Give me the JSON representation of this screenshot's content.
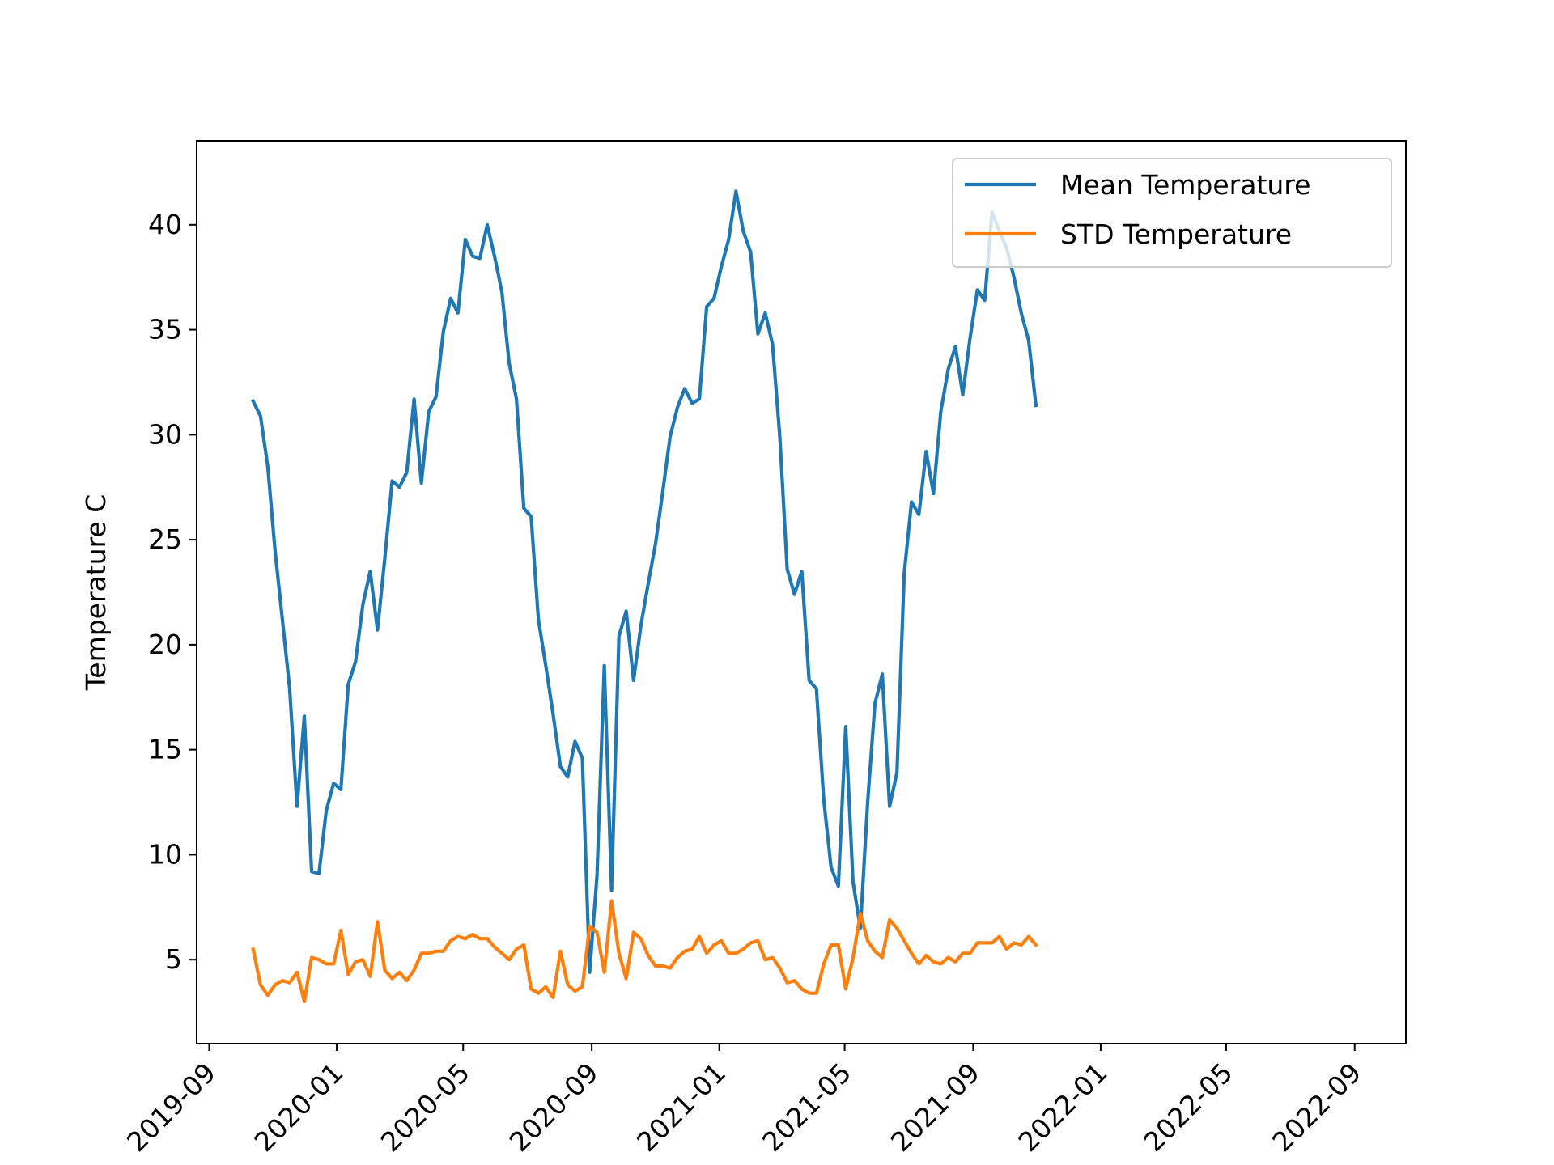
{
  "chart_data": {
    "type": "line",
    "title": "",
    "xlabel": "",
    "ylabel": "Temperature C",
    "x_range": [
      "2019-08-20",
      "2022-10-20"
    ],
    "ylim": [
      1.0,
      44.0
    ],
    "yticks": [
      5,
      10,
      15,
      20,
      25,
      30,
      35,
      40
    ],
    "xticks": [
      "2019-09",
      "2020-01",
      "2020-05",
      "2020-09",
      "2021-01",
      "2021-05",
      "2021-09",
      "2022-01",
      "2022-05",
      "2022-09"
    ],
    "grid": false,
    "legend": "upper right",
    "series": [
      {
        "name": "Mean Temperature",
        "color": "#1f77b4",
        "points": [
          [
            "2019-10-13",
            31.6
          ],
          [
            "2019-10-20",
            30.9
          ],
          [
            "2019-10-27",
            28.5
          ],
          [
            "2019-11-03",
            24.5
          ],
          [
            "2019-11-10",
            21.2
          ],
          [
            "2019-11-17",
            17.9
          ],
          [
            "2019-11-24",
            12.3
          ],
          [
            "2019-12-01",
            16.6
          ],
          [
            "2019-12-08",
            9.2
          ],
          [
            "2019-12-15",
            9.1
          ],
          [
            "2019-12-22",
            12.1
          ],
          [
            "2019-12-29",
            13.4
          ],
          [
            "2020-01-05",
            13.1
          ],
          [
            "2020-01-12",
            18.1
          ],
          [
            "2020-01-19",
            19.2
          ],
          [
            "2020-01-26",
            21.9
          ],
          [
            "2020-02-02",
            23.5
          ],
          [
            "2020-02-09",
            20.7
          ],
          [
            "2020-02-16",
            24.1
          ],
          [
            "2020-02-23",
            27.8
          ],
          [
            "2020-03-01",
            27.5
          ],
          [
            "2020-03-08",
            28.2
          ],
          [
            "2020-03-15",
            31.7
          ],
          [
            "2020-03-22",
            27.7
          ],
          [
            "2020-03-29",
            31.1
          ],
          [
            "2020-04-05",
            31.8
          ],
          [
            "2020-04-12",
            34.9
          ],
          [
            "2020-04-19",
            36.5
          ],
          [
            "2020-04-26",
            35.8
          ],
          [
            "2020-05-03",
            39.3
          ],
          [
            "2020-05-10",
            38.5
          ],
          [
            "2020-05-17",
            38.4
          ],
          [
            "2020-05-24",
            40.0
          ],
          [
            "2020-05-31",
            38.5
          ],
          [
            "2020-06-07",
            36.8
          ],
          [
            "2020-06-14",
            33.4
          ],
          [
            "2020-06-21",
            31.7
          ],
          [
            "2020-06-28",
            26.5
          ],
          [
            "2020-07-05",
            26.1
          ],
          [
            "2020-07-12",
            21.2
          ],
          [
            "2020-07-19",
            19.0
          ],
          [
            "2020-07-26",
            16.7
          ],
          [
            "2020-08-02",
            14.2
          ],
          [
            "2020-08-09",
            13.7
          ],
          [
            "2020-08-16",
            15.4
          ],
          [
            "2020-08-23",
            14.6
          ],
          [
            "2020-08-30",
            4.4
          ],
          [
            "2020-09-06",
            9.0
          ],
          [
            "2020-09-13",
            19.0
          ],
          [
            "2020-09-20",
            8.3
          ],
          [
            "2020-09-27",
            20.4
          ],
          [
            "2020-10-04",
            21.6
          ],
          [
            "2020-10-11",
            18.3
          ],
          [
            "2020-10-18",
            20.9
          ],
          [
            "2020-10-25",
            22.9
          ],
          [
            "2020-11-01",
            24.8
          ],
          [
            "2020-11-08",
            27.3
          ],
          [
            "2020-11-15",
            29.9
          ],
          [
            "2020-11-22",
            31.3
          ],
          [
            "2020-11-29",
            32.2
          ],
          [
            "2020-12-06",
            31.5
          ],
          [
            "2020-12-13",
            31.7
          ],
          [
            "2020-12-20",
            36.1
          ],
          [
            "2020-12-27",
            36.5
          ],
          [
            "2021-01-03",
            38.0
          ],
          [
            "2021-01-10",
            39.3
          ],
          [
            "2021-01-17",
            41.6
          ],
          [
            "2021-01-24",
            39.7
          ],
          [
            "2021-01-31",
            38.7
          ],
          [
            "2021-02-07",
            34.8
          ],
          [
            "2021-02-14",
            35.8
          ],
          [
            "2021-02-21",
            34.3
          ],
          [
            "2021-02-28",
            29.9
          ],
          [
            "2021-03-07",
            23.6
          ],
          [
            "2021-03-14",
            22.4
          ],
          [
            "2021-03-21",
            23.5
          ],
          [
            "2021-03-28",
            18.3
          ],
          [
            "2021-04-04",
            17.9
          ],
          [
            "2021-04-11",
            12.6
          ],
          [
            "2021-04-18",
            9.4
          ],
          [
            "2021-04-25",
            8.5
          ],
          [
            "2021-05-02",
            16.1
          ],
          [
            "2021-05-09",
            8.7
          ],
          [
            "2021-05-16",
            6.5
          ],
          [
            "2021-05-23",
            12.5
          ],
          [
            "2021-05-30",
            17.2
          ],
          [
            "2021-06-06",
            18.6
          ],
          [
            "2021-06-13",
            12.3
          ],
          [
            "2021-06-20",
            13.9
          ],
          [
            "2021-06-27",
            23.4
          ],
          [
            "2021-07-04",
            26.8
          ],
          [
            "2021-07-11",
            26.2
          ],
          [
            "2021-07-18",
            29.2
          ],
          [
            "2021-07-25",
            27.2
          ],
          [
            "2021-08-01",
            31.1
          ],
          [
            "2021-08-08",
            33.1
          ],
          [
            "2021-08-15",
            34.2
          ],
          [
            "2021-08-22",
            31.9
          ],
          [
            "2021-08-29",
            34.6
          ],
          [
            "2021-09-05",
            36.9
          ],
          [
            "2021-09-12",
            36.4
          ],
          [
            "2021-09-19",
            40.6
          ],
          [
            "2021-09-26",
            39.7
          ],
          [
            "2021-10-03",
            38.9
          ],
          [
            "2021-10-10",
            37.5
          ],
          [
            "2021-10-17",
            35.8
          ],
          [
            "2021-10-24",
            34.5
          ],
          [
            "2021-10-31",
            31.4
          ]
        ]
      },
      {
        "name": "STD Temperature",
        "color": "#ff7f0e",
        "points": [
          [
            "2019-10-13",
            5.5
          ],
          [
            "2019-10-20",
            3.8
          ],
          [
            "2019-10-27",
            3.3
          ],
          [
            "2019-11-03",
            3.8
          ],
          [
            "2019-11-10",
            4.0
          ],
          [
            "2019-11-17",
            3.9
          ],
          [
            "2019-11-24",
            4.4
          ],
          [
            "2019-12-01",
            3.0
          ],
          [
            "2019-12-08",
            5.1
          ],
          [
            "2019-12-15",
            5.0
          ],
          [
            "2019-12-22",
            4.8
          ],
          [
            "2019-12-29",
            4.8
          ],
          [
            "2020-01-05",
            6.4
          ],
          [
            "2020-01-12",
            4.3
          ],
          [
            "2020-01-19",
            4.9
          ],
          [
            "2020-01-26",
            5.0
          ],
          [
            "2020-02-02",
            4.2
          ],
          [
            "2020-02-09",
            6.8
          ],
          [
            "2020-02-16",
            4.5
          ],
          [
            "2020-02-23",
            4.1
          ],
          [
            "2020-03-01",
            4.4
          ],
          [
            "2020-03-08",
            4.0
          ],
          [
            "2020-03-15",
            4.5
          ],
          [
            "2020-03-22",
            5.3
          ],
          [
            "2020-03-29",
            5.3
          ],
          [
            "2020-04-05",
            5.4
          ],
          [
            "2020-04-12",
            5.4
          ],
          [
            "2020-04-19",
            5.9
          ],
          [
            "2020-04-26",
            6.1
          ],
          [
            "2020-05-03",
            6.0
          ],
          [
            "2020-05-10",
            6.2
          ],
          [
            "2020-05-17",
            6.0
          ],
          [
            "2020-05-24",
            6.0
          ],
          [
            "2020-05-31",
            5.6
          ],
          [
            "2020-06-07",
            5.3
          ],
          [
            "2020-06-14",
            5.0
          ],
          [
            "2020-06-21",
            5.5
          ],
          [
            "2020-06-28",
            5.7
          ],
          [
            "2020-07-05",
            3.6
          ],
          [
            "2020-07-12",
            3.4
          ],
          [
            "2020-07-19",
            3.7
          ],
          [
            "2020-07-26",
            3.2
          ],
          [
            "2020-08-02",
            5.4
          ],
          [
            "2020-08-09",
            3.8
          ],
          [
            "2020-08-16",
            3.5
          ],
          [
            "2020-08-23",
            3.7
          ],
          [
            "2020-08-30",
            6.6
          ],
          [
            "2020-09-06",
            6.3
          ],
          [
            "2020-09-13",
            4.4
          ],
          [
            "2020-09-20",
            7.8
          ],
          [
            "2020-09-27",
            5.3
          ],
          [
            "2020-10-04",
            4.1
          ],
          [
            "2020-10-11",
            6.3
          ],
          [
            "2020-10-18",
            6.0
          ],
          [
            "2020-10-25",
            5.2
          ],
          [
            "2020-11-01",
            4.7
          ],
          [
            "2020-11-08",
            4.7
          ],
          [
            "2020-11-15",
            4.6
          ],
          [
            "2020-11-22",
            5.1
          ],
          [
            "2020-11-29",
            5.4
          ],
          [
            "2020-12-06",
            5.5
          ],
          [
            "2020-12-13",
            6.1
          ],
          [
            "2020-12-20",
            5.3
          ],
          [
            "2020-12-27",
            5.7
          ],
          [
            "2021-01-03",
            5.9
          ],
          [
            "2021-01-10",
            5.3
          ],
          [
            "2021-01-17",
            5.3
          ],
          [
            "2021-01-24",
            5.5
          ],
          [
            "2021-01-31",
            5.8
          ],
          [
            "2021-02-07",
            5.9
          ],
          [
            "2021-02-14",
            5.0
          ],
          [
            "2021-02-21",
            5.1
          ],
          [
            "2021-02-28",
            4.6
          ],
          [
            "2021-03-07",
            3.9
          ],
          [
            "2021-03-14",
            4.0
          ],
          [
            "2021-03-21",
            3.6
          ],
          [
            "2021-03-28",
            3.4
          ],
          [
            "2021-04-04",
            3.4
          ],
          [
            "2021-04-11",
            4.8
          ],
          [
            "2021-04-18",
            5.7
          ],
          [
            "2021-04-25",
            5.7
          ],
          [
            "2021-05-02",
            3.6
          ],
          [
            "2021-05-09",
            5.1
          ],
          [
            "2021-05-16",
            7.2
          ],
          [
            "2021-05-23",
            5.9
          ],
          [
            "2021-05-30",
            5.4
          ],
          [
            "2021-06-06",
            5.1
          ],
          [
            "2021-06-13",
            6.9
          ],
          [
            "2021-06-20",
            6.5
          ],
          [
            "2021-06-27",
            5.9
          ],
          [
            "2021-07-04",
            5.3
          ],
          [
            "2021-07-11",
            4.8
          ],
          [
            "2021-07-18",
            5.2
          ],
          [
            "2021-07-25",
            4.9
          ],
          [
            "2021-08-01",
            4.8
          ],
          [
            "2021-08-08",
            5.1
          ],
          [
            "2021-08-15",
            4.9
          ],
          [
            "2021-08-22",
            5.3
          ],
          [
            "2021-08-29",
            5.3
          ],
          [
            "2021-09-05",
            5.8
          ],
          [
            "2021-09-12",
            5.8
          ],
          [
            "2021-09-19",
            5.8
          ],
          [
            "2021-09-26",
            6.1
          ],
          [
            "2021-10-03",
            5.5
          ],
          [
            "2021-10-10",
            5.8
          ],
          [
            "2021-10-17",
            5.7
          ],
          [
            "2021-10-24",
            6.1
          ],
          [
            "2021-10-31",
            5.7
          ]
        ]
      }
    ]
  }
}
